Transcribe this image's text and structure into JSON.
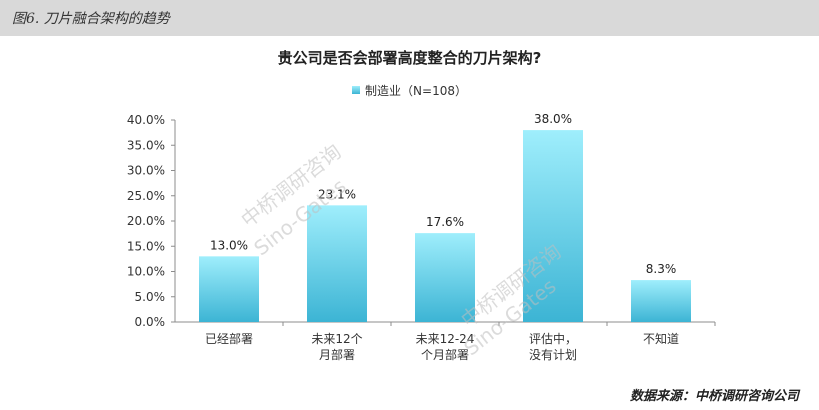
{
  "header": {
    "title": "图6. 刀片融合架构的趋势"
  },
  "watermark": {
    "cn": "中桥调研咨询",
    "en": "Sino-Gates"
  },
  "chart_data": {
    "type": "bar",
    "title": "贵公司是否会部署高度整合的刀片架构?",
    "categories": [
      [
        "已经部署"
      ],
      [
        "未来12个",
        "月部署"
      ],
      [
        "未来12-24",
        "个月部署"
      ],
      [
        "评估中，",
        "没有计划"
      ],
      [
        "不知道"
      ]
    ],
    "series": [
      {
        "name": "制造业（N=108）",
        "values": [
          13.0,
          23.1,
          17.6,
          38.0,
          8.3
        ],
        "labels": [
          "13.0%",
          "23.1%",
          "17.6%",
          "38.0%",
          "8.3%"
        ]
      }
    ],
    "ylim": [
      0,
      40
    ],
    "yticks": [
      "0.0%",
      "5.0%",
      "10.0%",
      "15.0%",
      "20.0%",
      "25.0%",
      "30.0%",
      "35.0%",
      "40.0%"
    ],
    "grid": false,
    "legend": "top-center",
    "colors": {
      "bar_top": "#9feefc",
      "bar_bottom": "#3cb4d4"
    }
  },
  "source": "数据来源：中桥调研咨询公司"
}
